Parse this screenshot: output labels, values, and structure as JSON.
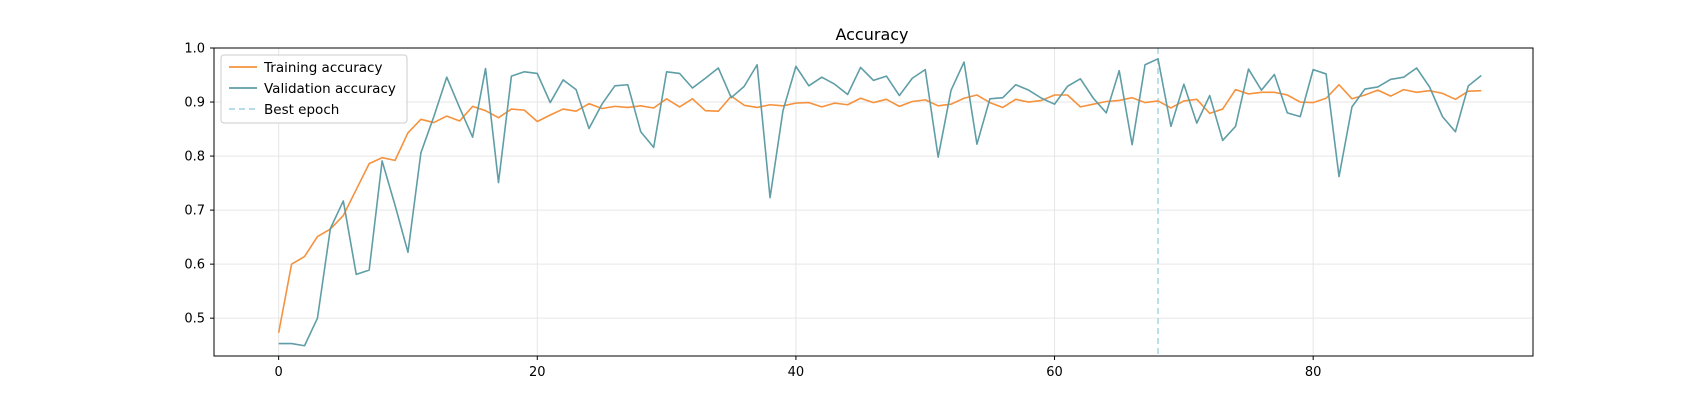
{
  "chart_data": {
    "type": "line",
    "title": "Accuracy",
    "xlabel": "",
    "ylabel": "",
    "xlim": [
      -5,
      97
    ],
    "ylim": [
      0.43,
      1.0
    ],
    "xticks": [
      0,
      20,
      40,
      60,
      80
    ],
    "yticks": [
      0.5,
      0.6,
      0.7,
      0.8,
      0.9,
      1.0
    ],
    "xtick_labels": [
      "0",
      "20",
      "40",
      "60",
      "80"
    ],
    "ytick_labels": [
      "0.5",
      "0.6",
      "0.7",
      "0.8",
      "0.9",
      "1.0"
    ],
    "grid": true,
    "legend_position": "top-left",
    "series": [
      {
        "name": "Training accuracy",
        "color": "#f5923e",
        "values": [
          0.473,
          0.6,
          0.614,
          0.651,
          0.665,
          0.69,
          0.738,
          0.786,
          0.797,
          0.792,
          0.843,
          0.868,
          0.862,
          0.874,
          0.865,
          0.892,
          0.884,
          0.871,
          0.887,
          0.885,
          0.864,
          0.876,
          0.887,
          0.883,
          0.897,
          0.888,
          0.892,
          0.89,
          0.893,
          0.889,
          0.906,
          0.891,
          0.906,
          0.884,
          0.883,
          0.911,
          0.894,
          0.89,
          0.895,
          0.893,
          0.898,
          0.899,
          0.891,
          0.898,
          0.895,
          0.907,
          0.899,
          0.905,
          0.892,
          0.901,
          0.904,
          0.893,
          0.896,
          0.907,
          0.913,
          0.899,
          0.89,
          0.905,
          0.9,
          0.903,
          0.913,
          0.913,
          0.891,
          0.896,
          0.901,
          0.903,
          0.908,
          0.899,
          0.902,
          0.889,
          0.902,
          0.905,
          0.879,
          0.887,
          0.923,
          0.915,
          0.918,
          0.918,
          0.913,
          0.9,
          0.899,
          0.907,
          0.932,
          0.906,
          0.913,
          0.922,
          0.911,
          0.923,
          0.918,
          0.921,
          0.916,
          0.905,
          0.92,
          0.921
        ]
      },
      {
        "name": "Validation accuracy",
        "color": "#5f9ea6",
        "values": [
          0.453,
          0.453,
          0.449,
          0.5,
          0.666,
          0.717,
          0.581,
          0.589,
          0.791,
          0.709,
          0.622,
          0.806,
          0.873,
          0.946,
          0.889,
          0.835,
          0.962,
          0.751,
          0.948,
          0.956,
          0.953,
          0.899,
          0.941,
          0.923,
          0.851,
          0.896,
          0.93,
          0.932,
          0.845,
          0.816,
          0.956,
          0.953,
          0.926,
          0.944,
          0.963,
          0.908,
          0.929,
          0.969,
          0.723,
          0.884,
          0.966,
          0.93,
          0.946,
          0.933,
          0.914,
          0.964,
          0.94,
          0.948,
          0.912,
          0.944,
          0.96,
          0.798,
          0.922,
          0.974,
          0.822,
          0.906,
          0.908,
          0.932,
          0.922,
          0.907,
          0.896,
          0.929,
          0.943,
          0.907,
          0.88,
          0.958,
          0.821,
          0.969,
          0.98,
          0.855,
          0.933,
          0.861,
          0.912,
          0.829,
          0.855,
          0.961,
          0.922,
          0.951,
          0.88,
          0.873,
          0.96,
          0.952,
          0.762,
          0.891,
          0.924,
          0.928,
          0.942,
          0.946,
          0.963,
          0.928,
          0.873,
          0.845,
          0.93,
          0.949
        ]
      }
    ],
    "annotations": [
      {
        "type": "vline",
        "name": "Best epoch",
        "x": 68,
        "color": "#add8e6",
        "style": "dashed"
      }
    ],
    "legend": [
      "Training accuracy",
      "Validation accuracy",
      "Best epoch"
    ]
  }
}
